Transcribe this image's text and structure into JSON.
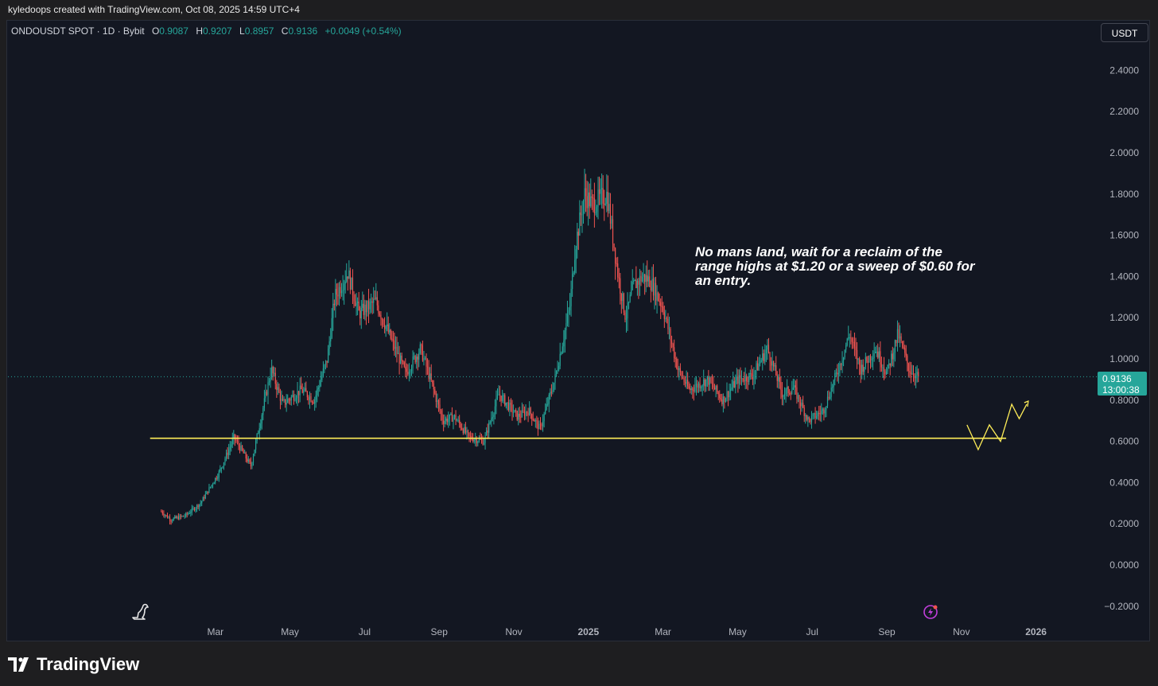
{
  "caption": "kyledoops created with TradingView.com, Oct 08, 2025 14:59 UTC+4",
  "header": {
    "symbol": "ONDOUSDT SPOT · 1D · Bybit",
    "open_label": "O",
    "open": "0.9087",
    "high_label": "H",
    "high": "0.9207",
    "low_label": "L",
    "low": "0.8957",
    "close_label": "C",
    "close": "0.9136",
    "change": "+0.0049 (+0.54%)"
  },
  "currency_button": "USDT",
  "price_tag": {
    "price": "0.9136",
    "countdown": "13:00:38"
  },
  "annotation": "No mans land, wait for a reclaim of the range highs at $1.20 or a sweep of $0.60 for an entry.",
  "brand": "TradingView",
  "icons": {
    "logo": "dino-icon",
    "alert": "lightning-icon",
    "brand": "tradingview-logo-icon"
  },
  "colors": {
    "up": "#26a69a",
    "down": "#ef5350",
    "support_line": "#ffee58",
    "background": "#131722"
  },
  "chart_data": {
    "type": "candlestick",
    "title": "",
    "xlabel": "",
    "ylabel": "",
    "ylim": [
      -0.2,
      2.5
    ],
    "y_ticks": [
      "2.4000",
      "2.2000",
      "2.0000",
      "1.8000",
      "1.6000",
      "1.4000",
      "1.2000",
      "1.0000",
      "0.8000",
      "0.6000",
      "0.4000",
      "0.2000",
      "0.0000",
      "−0.2000"
    ],
    "y_tick_values": [
      2.4,
      2.2,
      2.0,
      1.8,
      1.6,
      1.4,
      1.2,
      1.0,
      0.8,
      0.6,
      0.4,
      0.2,
      0.0,
      -0.2
    ],
    "x_ticks": [
      "Mar",
      "May",
      "Jul",
      "Sep",
      "Nov",
      "2025",
      "Mar",
      "May",
      "Jul",
      "Sep",
      "Nov",
      "2026"
    ],
    "x_tick_months": [
      2,
      4,
      6,
      8,
      10,
      12,
      14,
      16,
      18,
      20,
      22,
      24
    ],
    "x_start_month": 0.45,
    "last_price": 0.9136,
    "support_level": 0.615,
    "support_from_month": 0.25,
    "support_to_month": 23.2,
    "projection": {
      "months": [
        22.15,
        22.45,
        22.75,
        23.05,
        23.35,
        23.55,
        23.75
      ],
      "values": [
        0.68,
        0.56,
        0.68,
        0.6,
        0.78,
        0.71,
        0.78
      ]
    },
    "anchors_month": [
      0.55,
      0.8,
      1.2,
      1.6,
      2.1,
      2.5,
      2.95,
      3.3,
      3.5,
      3.8,
      4.3,
      4.65,
      5.0,
      5.2,
      5.55,
      5.85,
      6.3,
      6.7,
      7.1,
      7.5,
      7.8,
      8.1,
      8.4,
      8.8,
      9.2,
      9.6,
      10.1,
      10.4,
      10.7,
      11.1,
      11.5,
      11.65,
      11.9,
      12.1,
      12.5,
      12.8,
      13.0,
      13.2,
      13.45,
      13.65,
      14.0,
      14.4,
      14.7,
      15.2,
      15.6,
      16.0,
      16.4,
      16.8,
      17.2,
      17.5,
      17.9,
      18.3,
      18.7,
      19.0,
      19.3,
      19.7,
      20.0,
      20.3,
      20.6,
      20.85
    ],
    "anchors_value": [
      0.26,
      0.22,
      0.24,
      0.3,
      0.45,
      0.62,
      0.48,
      0.78,
      0.95,
      0.78,
      0.85,
      0.8,
      1.0,
      1.3,
      1.42,
      1.22,
      1.28,
      1.1,
      0.93,
      1.05,
      0.88,
      0.7,
      0.72,
      0.62,
      0.6,
      0.83,
      0.72,
      0.75,
      0.66,
      0.9,
      1.25,
      1.55,
      1.8,
      1.75,
      1.8,
      1.4,
      1.2,
      1.35,
      1.4,
      1.38,
      1.25,
      0.95,
      0.85,
      0.9,
      0.8,
      0.9,
      0.92,
      1.05,
      0.83,
      0.86,
      0.7,
      0.75,
      0.95,
      1.12,
      0.95,
      1.05,
      0.93,
      1.12,
      0.95,
      0.91
    ]
  }
}
